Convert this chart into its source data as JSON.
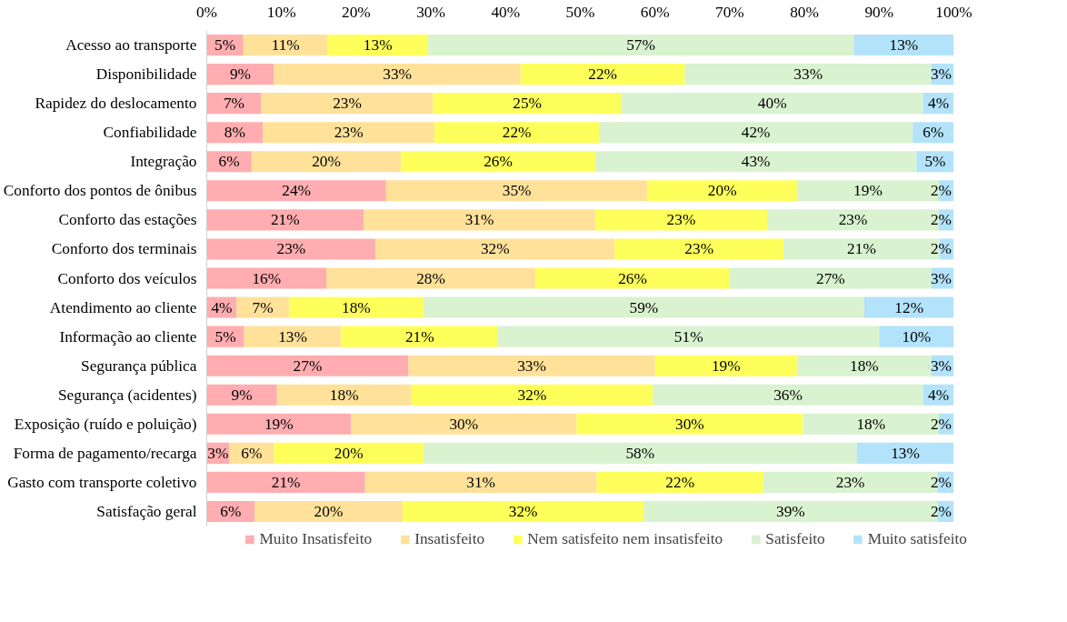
{
  "chart_data": {
    "type": "bar",
    "orientation": "horizontal",
    "stacked": true,
    "legend": "bottom",
    "grid": false,
    "categories": [
      "Acesso ao transporte",
      "Disponibilidade",
      "Rapidez do deslocamento",
      "Confiabilidade",
      "Integração",
      "Conforto dos pontos de ônibus",
      "Conforto das estações",
      "Conforto dos terminais",
      "Conforto dos veículos",
      "Atendimento ao cliente",
      "Informação ao cliente",
      "Segurança pública",
      "Segurança (acidentes)",
      "Exposição (ruído e poluição)",
      "Forma de pagamento/recarga",
      "Gasto com transporte coletivo",
      "Satisfação geral"
    ],
    "xlim": [
      0,
      100
    ],
    "xticks": [
      {
        "value": 0,
        "label": "0%"
      },
      {
        "value": 10,
        "label": "10%"
      },
      {
        "value": 20,
        "label": "20%"
      },
      {
        "value": 30,
        "label": "30%"
      },
      {
        "value": 40,
        "label": "40%"
      },
      {
        "value": 50,
        "label": "50%"
      },
      {
        "value": 60,
        "label": "60%"
      },
      {
        "value": 70,
        "label": "70%"
      },
      {
        "value": 80,
        "label": "80%"
      },
      {
        "value": 90,
        "label": "90%"
      },
      {
        "value": 100,
        "label": "100%"
      }
    ],
    "series": [
      {
        "name": "Muito Insatisfeito",
        "color": "#ffadb0",
        "values": [
          4.9,
          9,
          7.3,
          7.5,
          6,
          24,
          21,
          22.6,
          16,
          4,
          5,
          27,
          9.4,
          19.3,
          3,
          21.2,
          6.4
        ],
        "value_labels": [
          "5%",
          "9%",
          "7%",
          "8%",
          "6%",
          "24%",
          "21%",
          "23%",
          "16%",
          "4%",
          "5%",
          "27%",
          "9%",
          "19%",
          "3%",
          "21%",
          "6%"
        ]
      },
      {
        "name": "Insatisfeito",
        "color": "#ffe199",
        "values": [
          11.3,
          33,
          23,
          23,
          20,
          35,
          31,
          32,
          28,
          7,
          13,
          33,
          18,
          30.2,
          6,
          31,
          19.8
        ],
        "value_labels": [
          "11%",
          "33%",
          "23%",
          "23%",
          "20%",
          "35%",
          "31%",
          "32%",
          "28%",
          "7%",
          "13%",
          "33%",
          "18%",
          "30%",
          "6%",
          "31%",
          "20%"
        ]
      },
      {
        "name": "Nem satisfeito nem insatisfeito",
        "color": "#ffff5c",
        "values": [
          13.4,
          22,
          25.2,
          22,
          26,
          20,
          23,
          22.6,
          26,
          18,
          21,
          19,
          32.3,
          30.3,
          20,
          22.3,
          32.3
        ],
        "value_labels": [
          "13%",
          "22%",
          "25%",
          "22%",
          "26%",
          "20%",
          "23%",
          "23%",
          "26%",
          "18%",
          "21%",
          "19%",
          "32%",
          "30%",
          "20%",
          "22%",
          "32%"
        ]
      },
      {
        "name": "Satisfeito",
        "color": "#d9f2d0",
        "values": [
          57,
          33,
          40.4,
          42,
          43,
          19,
          23,
          20.9,
          27,
          59,
          51,
          18,
          36.2,
          18.2,
          58,
          23.3,
          39.3
        ],
        "value_labels": [
          "57%",
          "33%",
          "40%",
          "42%",
          "43%",
          "19%",
          "23%",
          "21%",
          "27%",
          "59%",
          "51%",
          "18%",
          "36%",
          "18%",
          "58%",
          "23%",
          "39%"
        ]
      },
      {
        "name": "Muito satisfeito",
        "color": "#b3e3fa",
        "values": [
          13.4,
          3,
          4.1,
          5.5,
          5,
          2,
          2,
          1.9,
          3,
          12,
          10,
          3,
          4.1,
          2,
          13,
          2.2,
          2.2
        ],
        "value_labels": [
          "13%",
          "3%",
          "4%",
          "6%",
          "5%",
          "2%",
          "2%",
          "2%",
          "3%",
          "12%",
          "10%",
          "3%",
          "4%",
          "2%",
          "13%",
          "2%",
          "2%"
        ]
      }
    ]
  }
}
